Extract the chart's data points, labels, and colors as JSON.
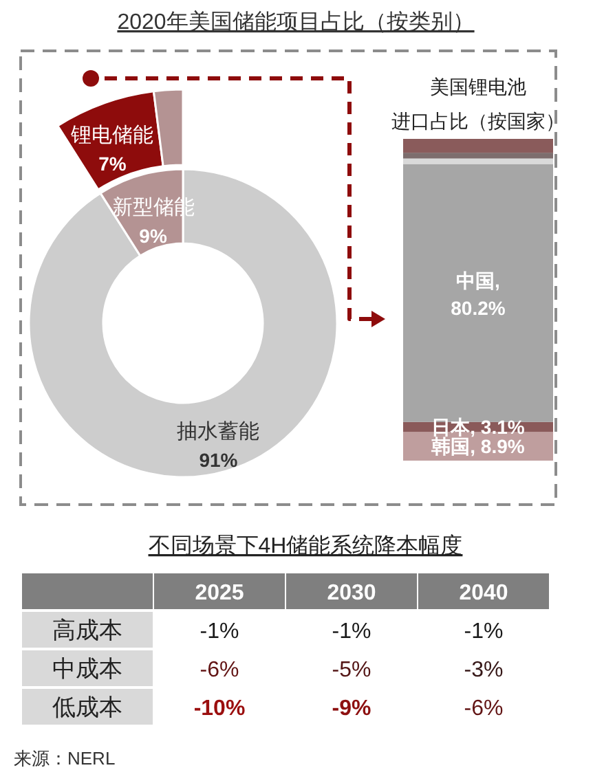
{
  "chart_data": [
    {
      "type": "donut",
      "title": "2020年美国储能项目占比（按类别）",
      "categories": [
        "抽水蓄能",
        "新型储能"
      ],
      "values": [
        91,
        9
      ],
      "colors": [
        "#cdcdcd",
        "#b49393"
      ],
      "value_labels": [
        "91%",
        "9%"
      ]
    },
    {
      "type": "donut",
      "categories": [
        "锂电储能",
        null
      ],
      "values": [
        7,
        2
      ],
      "colors": [
        "#8e0c0c",
        "#b49393"
      ],
      "value_labels": [
        "7%",
        null
      ]
    },
    {
      "type": "bar",
      "stacked": true,
      "title": "美国锂电池进口占比（按国家）",
      "categories": [
        null
      ],
      "ylim": [
        0,
        100
      ],
      "tick_labels": false,
      "series": [
        {
          "color": "#bf9e9e",
          "values": [
            8.9
          ],
          "value_labels": [
            "韩国, 8.9%"
          ]
        },
        {
          "color": "#8a5a5a",
          "values": [
            3.1
          ],
          "value_labels": [
            "日本, 3.1%"
          ]
        },
        {
          "color": "#a6a6a6",
          "values": [
            80.2
          ],
          "value_labels": [
            "中国, 80.2%"
          ]
        },
        {
          "color": "#d9d9d9",
          "values": [
            1.7
          ]
        },
        {
          "color": "#7d6d6d",
          "values": [
            1.8
          ]
        },
        {
          "color": "#8a5b5b",
          "values": [
            4.3
          ]
        }
      ]
    },
    {
      "type": "heatmap",
      "title": "不同场景下4H储能系统降本幅度",
      "categories": [
        "2025",
        "2030",
        "2040"
      ],
      "y_categories": [
        "高成本",
        "中成本",
        "低成本"
      ],
      "cells": [
        [
          -1,
          -1,
          -1
        ],
        [
          -6,
          -5,
          -3
        ],
        [
          -10,
          -9,
          -6
        ]
      ],
      "cell_labels": [
        [
          "-1%",
          "-1%",
          "-1%"
        ],
        [
          "-6%",
          "-5%",
          "-3%"
        ],
        [
          "-10%",
          "-9%",
          "-6%"
        ]
      ],
      "annotations": [
        "来源：NERL"
      ]
    }
  ]
}
